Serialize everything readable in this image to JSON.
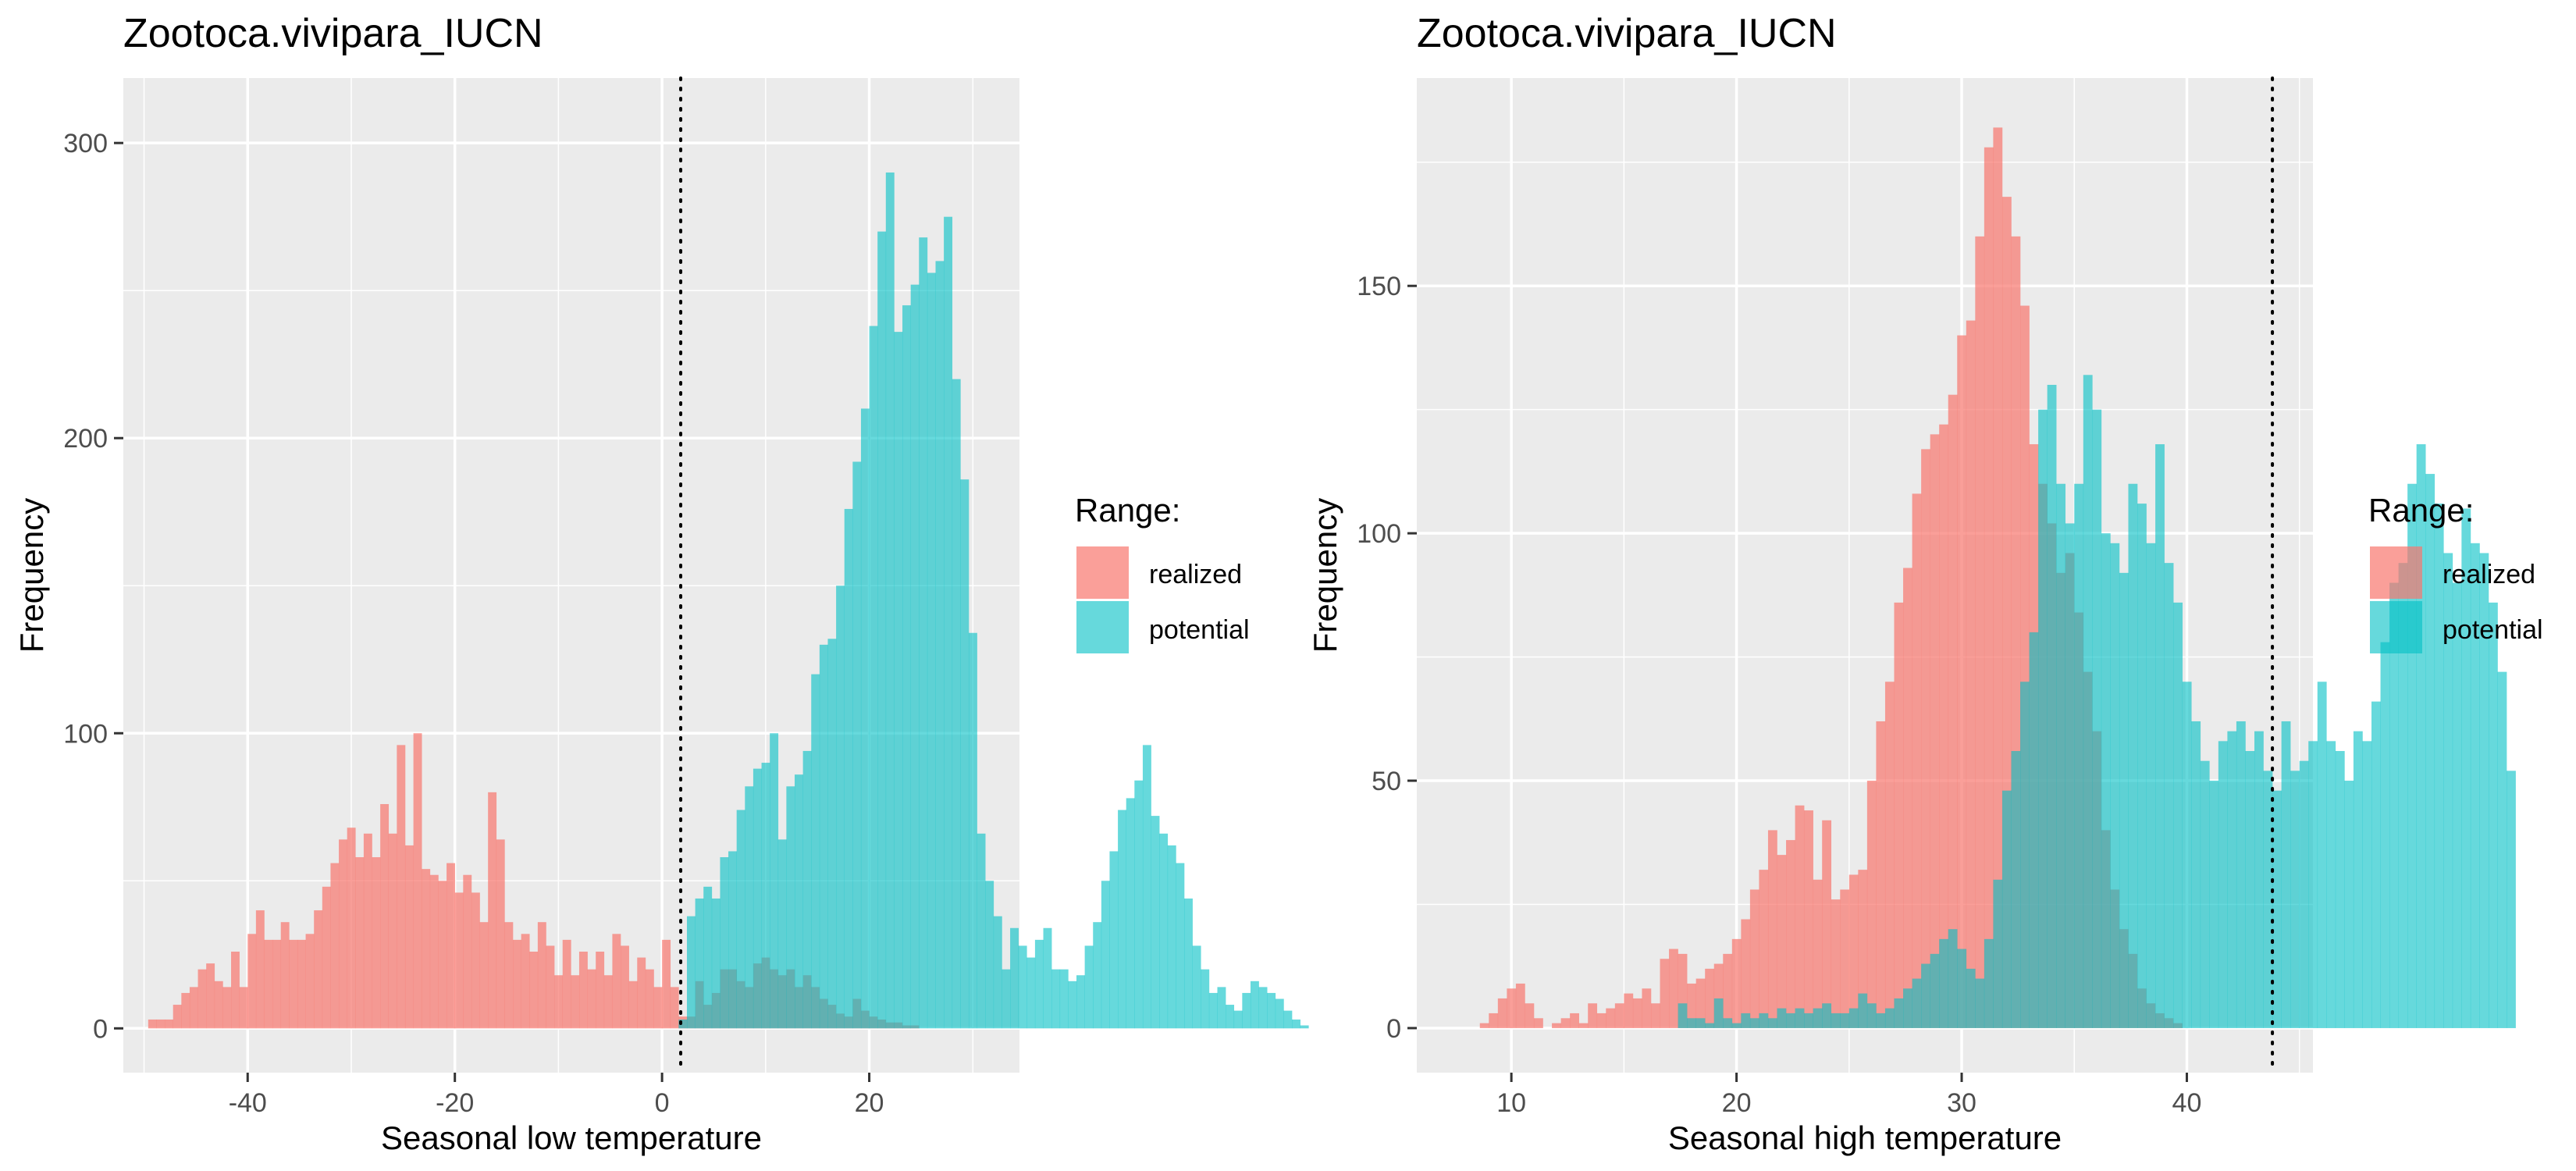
{
  "chart_data": [
    {
      "type": "histogram",
      "title": "Zootoca.vivipara_IUCN",
      "xlabel": "Seasonal low temperature",
      "ylabel": "Frequency",
      "xlim": [
        -52,
        34.5
      ],
      "ylim": [
        -15,
        322
      ],
      "xticks": [
        -40,
        -20,
        0,
        20
      ],
      "yticks": [
        0,
        100,
        200,
        300
      ],
      "bin_width": 0.8,
      "reference_line_x": 1.8,
      "legend": {
        "title": "Range:",
        "position": "right"
      },
      "series": [
        {
          "name": "realized",
          "color": "#F8766D",
          "opacity": 0.7,
          "x_start": -49.6,
          "counts": [
            3,
            3,
            3,
            8,
            12,
            14,
            20,
            22,
            16,
            14,
            26,
            14,
            32,
            40,
            30,
            30,
            36,
            30,
            30,
            32,
            40,
            48,
            56,
            64,
            68,
            58,
            66,
            58,
            76,
            66,
            96,
            62,
            100,
            54,
            52,
            50,
            56,
            46,
            52,
            46,
            36,
            80,
            64,
            36,
            30,
            32,
            26,
            36,
            28,
            18,
            30,
            18,
            26,
            20,
            26,
            18,
            32,
            28,
            16,
            24,
            20,
            14,
            30,
            14,
            4,
            4,
            16,
            8,
            12,
            20,
            20,
            16,
            14,
            22,
            24,
            20,
            18,
            20,
            14,
            18,
            14,
            10,
            8,
            5,
            4,
            10,
            6,
            4,
            3,
            2,
            2,
            1,
            1,
            0,
            0,
            0,
            0,
            0,
            0,
            0,
            0,
            0,
            0,
            0,
            0,
            0,
            0,
            0,
            0
          ]
        },
        {
          "name": "potential",
          "color": "#00BFC4",
          "opacity": 0.6,
          "x_start": 1.6,
          "counts": [
            3,
            38,
            44,
            48,
            44,
            58,
            60,
            74,
            82,
            88,
            90,
            100,
            64,
            82,
            86,
            94,
            120,
            130,
            132,
            150,
            176,
            192,
            210,
            238,
            270,
            290,
            236,
            245,
            252,
            268,
            256,
            260,
            275,
            220,
            186,
            134,
            66,
            50,
            38,
            20,
            34,
            28,
            24,
            30,
            34,
            20,
            20,
            16,
            18,
            28,
            36,
            50,
            60,
            74,
            78,
            84,
            96,
            72,
            66,
            62,
            56,
            44,
            28,
            20,
            12,
            14,
            8,
            6,
            12,
            16,
            14,
            12,
            10,
            6,
            3,
            1,
            0,
            0,
            0
          ]
        }
      ]
    },
    {
      "type": "histogram",
      "title": "Zootoca.vivipara_IUCN",
      "xlabel": "Seasonal high temperature",
      "ylabel": "Frequency",
      "xlim": [
        5.8,
        45.6
      ],
      "ylim": [
        -9,
        192
      ],
      "xticks": [
        10,
        20,
        30,
        40
      ],
      "yticks": [
        0,
        50,
        100,
        150
      ],
      "bin_width": 0.4,
      "reference_line_x": 43.8,
      "legend": {
        "title": "Range:",
        "position": "right"
      },
      "series": [
        {
          "name": "realized",
          "color": "#F8766D",
          "opacity": 0.7,
          "x_start": 8.6,
          "counts": [
            1,
            3,
            6,
            8,
            9,
            5,
            2,
            0,
            1,
            2,
            3,
            1,
            5,
            3,
            4,
            5,
            7,
            6,
            8,
            5,
            14,
            16,
            15,
            9,
            10,
            12,
            13,
            15,
            18,
            22,
            28,
            32,
            40,
            35,
            38,
            45,
            44,
            30,
            42,
            26,
            28,
            31,
            32,
            50,
            62,
            70,
            86,
            93,
            108,
            117,
            120,
            122,
            128,
            140,
            143,
            160,
            178,
            182,
            168,
            160,
            146,
            118,
            110,
            102,
            92,
            96,
            84,
            72,
            60,
            40,
            28,
            20,
            15,
            8,
            5,
            3,
            2,
            1,
            0
          ]
        },
        {
          "name": "potential",
          "color": "#00BFC4",
          "opacity": 0.6,
          "x_start": 17.4,
          "counts": [
            5,
            2,
            2,
            1,
            6,
            2,
            1,
            3,
            2,
            3,
            2,
            4,
            3,
            4,
            3,
            4,
            5,
            3,
            3,
            4,
            7,
            5,
            3,
            4,
            6,
            8,
            10,
            13,
            15,
            18,
            20,
            16,
            12,
            10,
            18,
            30,
            48,
            56,
            70,
            80,
            125,
            130,
            110,
            102,
            110,
            132,
            125,
            100,
            98,
            92,
            110,
            106,
            98,
            118,
            94,
            86,
            70,
            62,
            54,
            50,
            58,
            60,
            62,
            56,
            60,
            52,
            48,
            62,
            52,
            54,
            58,
            70,
            58,
            56,
            50,
            60,
            58,
            66,
            78,
            90,
            94,
            110,
            118,
            112,
            106,
            96,
            90,
            105,
            98,
            96,
            86,
            72,
            52,
            0,
            0
          ]
        }
      ]
    }
  ]
}
